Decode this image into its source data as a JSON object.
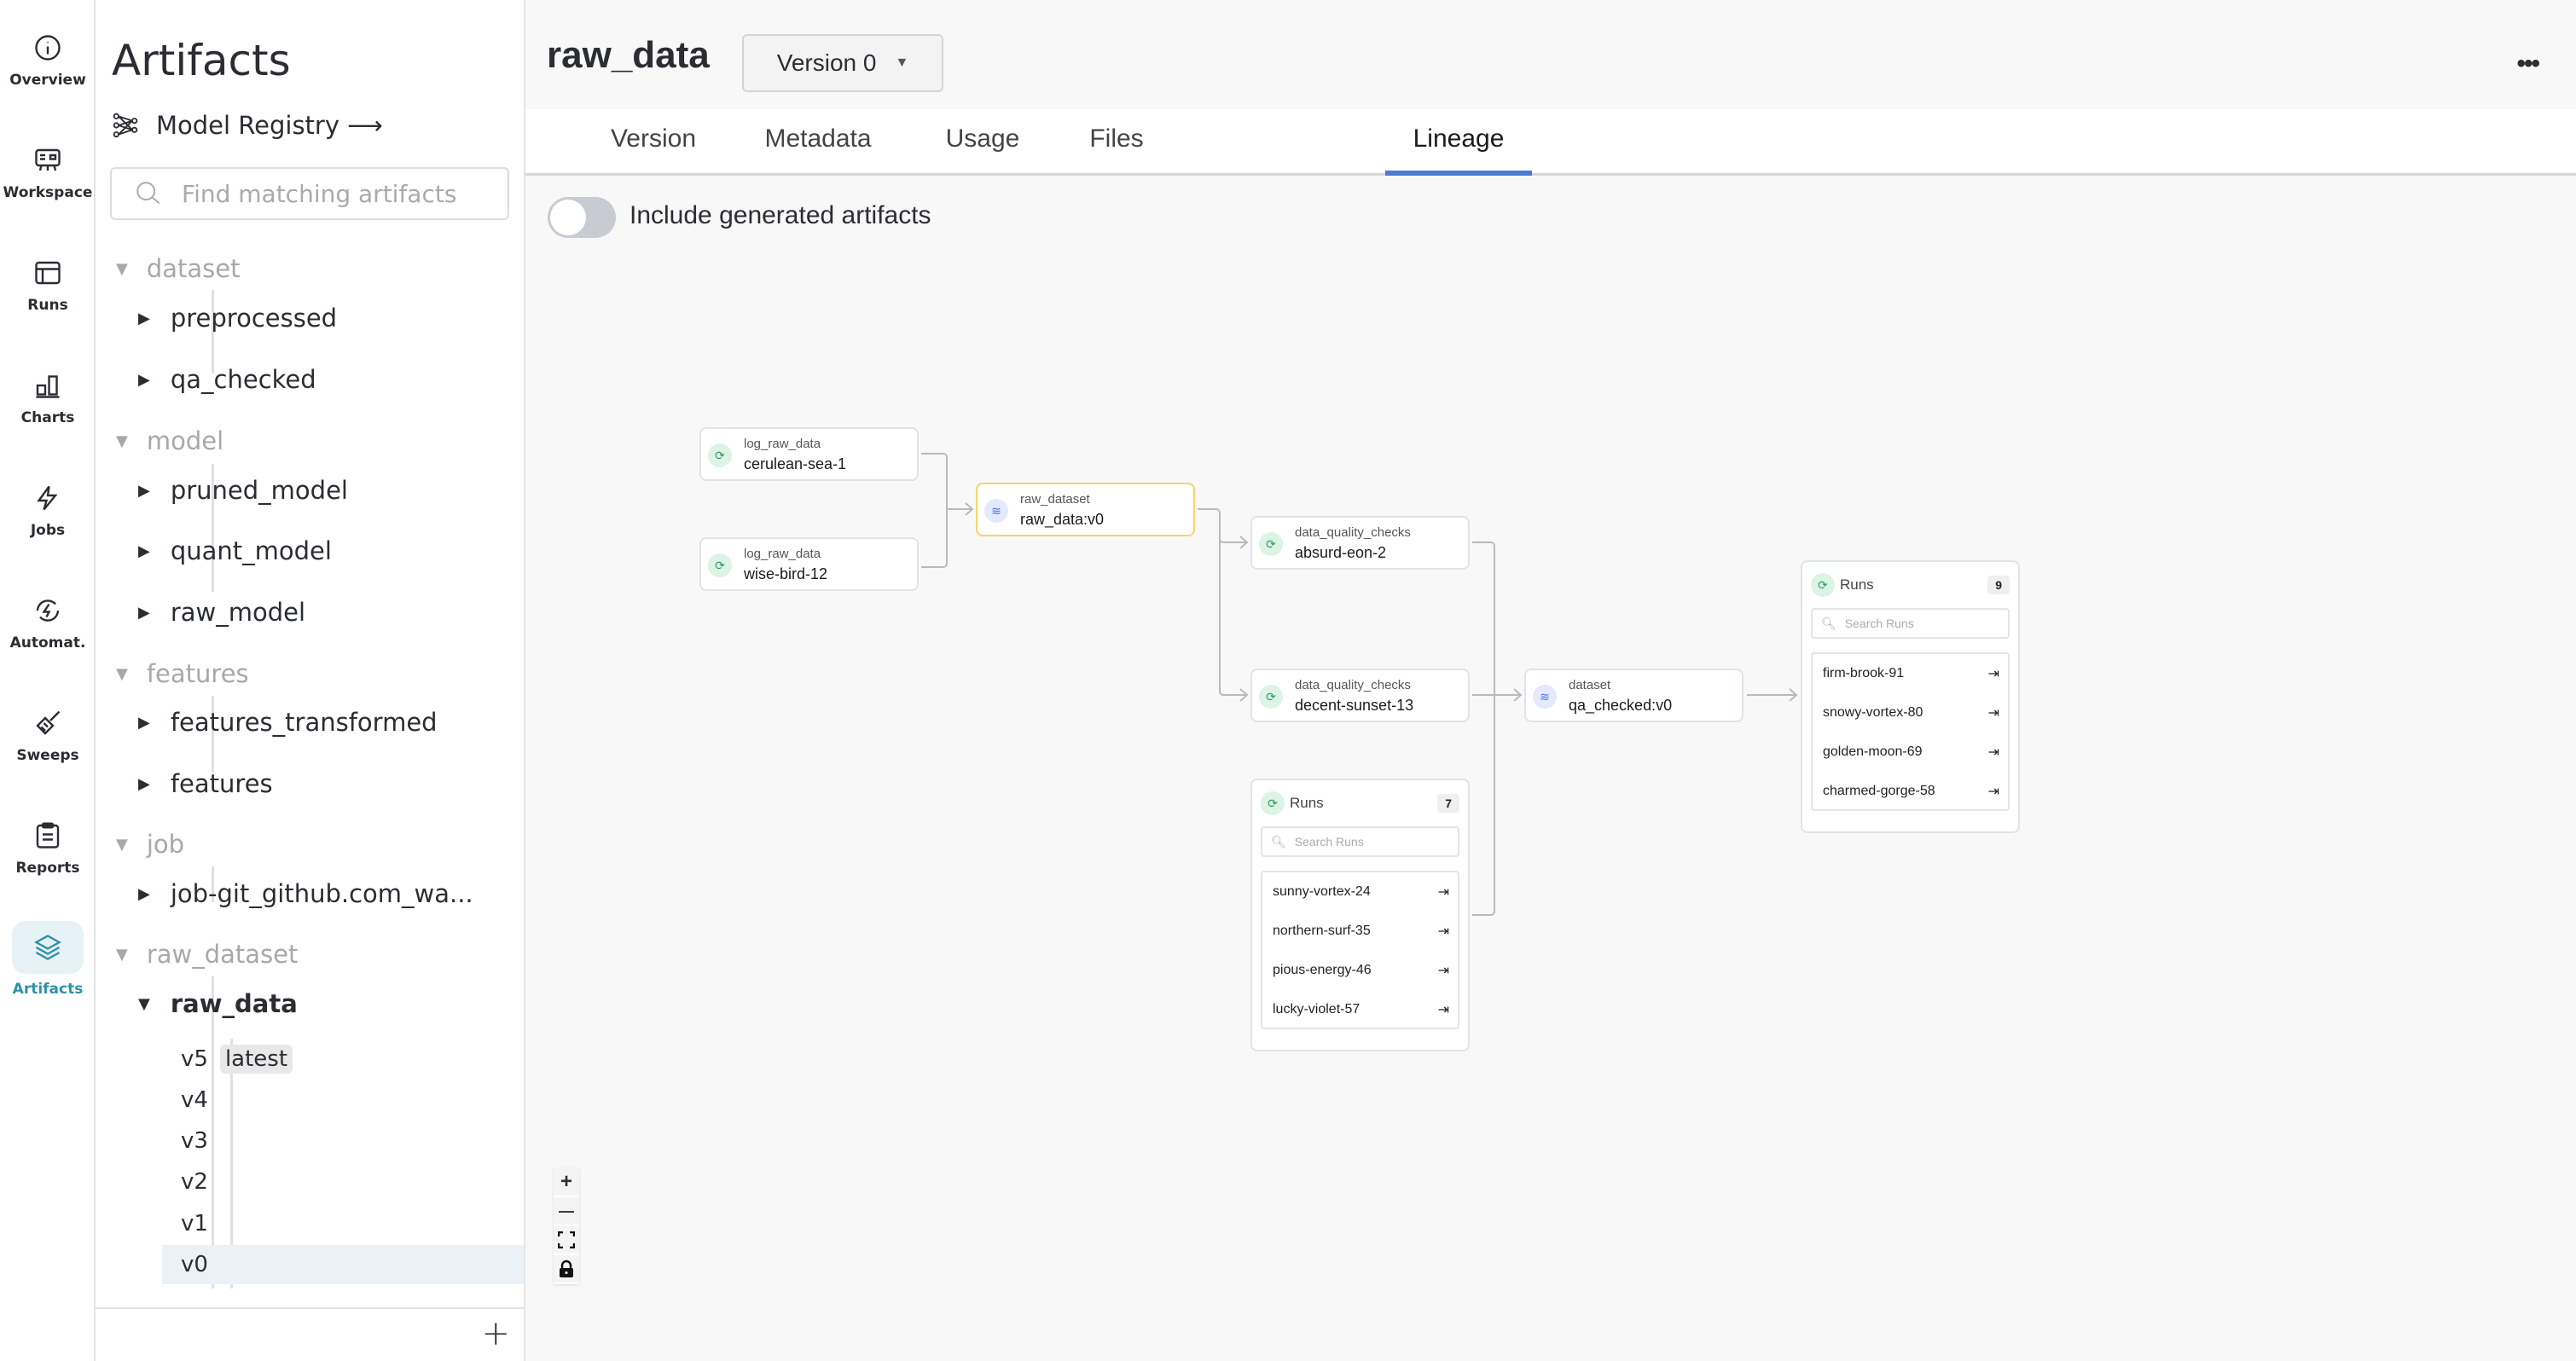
{
  "rail": {
    "items": [
      {
        "label": "Overview",
        "icon": "info-icon"
      },
      {
        "label": "Workspace",
        "icon": "workspace-icon"
      },
      {
        "label": "Runs",
        "icon": "table-icon"
      },
      {
        "label": "Charts",
        "icon": "bar-chart-icon"
      },
      {
        "label": "Jobs",
        "icon": "lightning-icon"
      },
      {
        "label": "Automat.",
        "icon": "automation-icon"
      },
      {
        "label": "Sweeps",
        "icon": "broom-icon"
      },
      {
        "label": "Reports",
        "icon": "clipboard-icon"
      },
      {
        "label": "Artifacts",
        "icon": "layers-icon",
        "active": true
      }
    ],
    "active_color": "#2e91a8"
  },
  "sidebar": {
    "title": "Artifacts",
    "model_registry": "Model Registry ⟶",
    "search_placeholder": "Find matching artifacts",
    "groups": [
      {
        "name": "dataset",
        "items": [
          "preprocessed",
          "qa_checked"
        ]
      },
      {
        "name": "model",
        "items": [
          "pruned_model",
          "quant_model",
          "raw_model"
        ]
      },
      {
        "name": "features",
        "items": [
          "features_transformed",
          "features"
        ]
      },
      {
        "name": "job",
        "items": [
          "job-git_github.com_wa..."
        ]
      },
      {
        "name": "raw_dataset",
        "items": [
          "raw_data"
        ]
      }
    ],
    "expanded": {
      "name": "raw_data",
      "versions": [
        "v5",
        "v4",
        "v3",
        "v2",
        "v1",
        "v0"
      ],
      "latest_badge": "latest",
      "selected": "v0"
    },
    "add_label": "+"
  },
  "header": {
    "title": "raw_data",
    "version_select": "Version 0",
    "more": "•••"
  },
  "tabs": [
    {
      "label": "Version"
    },
    {
      "label": "Metadata"
    },
    {
      "label": "Usage"
    },
    {
      "label": "Files"
    },
    {
      "label": "Lineage",
      "active": true
    }
  ],
  "toggle": {
    "label": "Include generated artifacts",
    "on": false
  },
  "lineage": {
    "nodes": {
      "cerulean": {
        "type": "log_raw_data",
        "name": "cerulean-sea-1"
      },
      "wisebird": {
        "type": "log_raw_data",
        "name": "wise-bird-12"
      },
      "rawdata": {
        "type": "raw_dataset",
        "name": "raw_data:v0"
      },
      "absurd": {
        "type": "data_quality_checks",
        "name": "absurd-eon-2"
      },
      "decent": {
        "type": "data_quality_checks",
        "name": "decent-sunset-13"
      },
      "qa": {
        "type": "dataset",
        "name": "qa_checked:v0"
      }
    },
    "runs_group_1": {
      "title": "Runs",
      "count": "7",
      "search_placeholder": "Search Runs",
      "runs": [
        "sunny-vortex-24",
        "northern-surf-35",
        "pious-energy-46",
        "lucky-violet-57"
      ]
    },
    "runs_group_2": {
      "title": "Runs",
      "count": "9",
      "search_placeholder": "Search Runs",
      "runs": [
        "firm-brook-91",
        "snowy-vortex-80",
        "golden-moon-69",
        "charmed-gorge-58"
      ]
    },
    "highlight_color": "#f5d56b"
  },
  "zoom_controls": {
    "zoom_in": "+",
    "zoom_out": "—"
  }
}
